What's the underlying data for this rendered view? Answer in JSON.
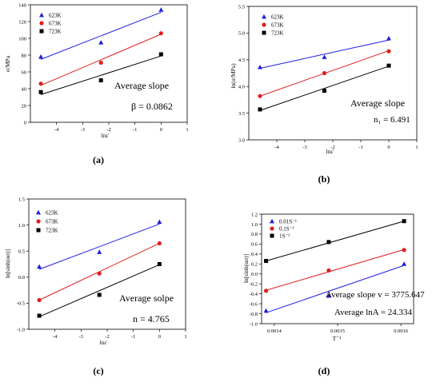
{
  "chart_data": [
    {
      "panel": "(a)",
      "type": "scatter",
      "xlabel": "lnε̇",
      "ylabel": "σ/MPa",
      "xlim": [
        -5,
        1
      ],
      "ylim": [
        0,
        140
      ],
      "xticks": [
        -4,
        -3,
        -2,
        -1,
        0,
        1
      ],
      "yticks": [
        0,
        20,
        40,
        60,
        80,
        100,
        120,
        140
      ],
      "series": [
        {
          "name": "623K",
          "color": "#1f1fe0",
          "marker": "triangle",
          "x": [
            -4.6,
            -2.3,
            0
          ],
          "y": [
            78,
            95,
            134
          ],
          "fit": [
            [
              -4.6,
              75
            ],
            [
              0,
              131
            ]
          ]
        },
        {
          "name": "673K",
          "color": "#e01f1f",
          "marker": "circle",
          "x": [
            -4.6,
            -2.3,
            0
          ],
          "y": [
            46,
            71,
            106
          ],
          "fit": [
            [
              -4.6,
              44
            ],
            [
              0,
              105
            ]
          ]
        },
        {
          "name": "723K",
          "color": "#000000",
          "marker": "square",
          "x": [
            -4.6,
            -2.3,
            0
          ],
          "y": [
            36,
            50,
            81
          ],
          "fit": [
            [
              -4.6,
              33
            ],
            [
              0,
              79
            ]
          ]
        }
      ],
      "annotations": [
        "Average slope",
        "β = 0.0862"
      ]
    },
    {
      "panel": "(b)",
      "type": "scatter",
      "xlabel": "lnε̇",
      "ylabel": "ln(σ/MPa)",
      "xlim": [
        -5,
        1
      ],
      "ylim": [
        3.0,
        5.5
      ],
      "xticks": [
        -4,
        -3,
        -2,
        -1,
        0,
        1
      ],
      "yticks": [
        "3.0",
        "3.5",
        "4.0",
        "4.5",
        "5.0",
        "5.5"
      ],
      "series": [
        {
          "name": "623K",
          "color": "#1f1fe0",
          "marker": "triangle",
          "x": [
            -4.6,
            -2.3,
            0
          ],
          "y": [
            4.36,
            4.55,
            4.9
          ],
          "fit": [
            [
              -4.6,
              4.34
            ],
            [
              0,
              4.87
            ]
          ]
        },
        {
          "name": "673K",
          "color": "#e01f1f",
          "marker": "circle",
          "x": [
            -4.6,
            -2.3,
            0
          ],
          "y": [
            3.82,
            4.25,
            4.66
          ],
          "fit": [
            [
              -4.6,
              3.82
            ],
            [
              0,
              4.67
            ]
          ]
        },
        {
          "name": "723K",
          "color": "#000000",
          "marker": "square",
          "x": [
            -4.6,
            -2.3,
            0
          ],
          "y": [
            3.57,
            3.92,
            4.39
          ],
          "fit": [
            [
              -4.6,
              3.55
            ],
            [
              0,
              4.38
            ]
          ]
        }
      ],
      "annotations": [
        "Average slope",
        "n₁ = 6.491"
      ]
    },
    {
      "panel": "(c)",
      "type": "scatter",
      "xlabel": "lnε̇",
      "ylabel": "ln[sinh(ασ)]",
      "xlim": [
        -5,
        1
      ],
      "ylim": [
        -1.0,
        1.5
      ],
      "xticks": [
        -4,
        -3,
        -2,
        -1,
        0,
        1
      ],
      "yticks": [
        "-1.0",
        "-0.5",
        "0.0",
        "0.5",
        "1.0",
        "1.5"
      ],
      "series": [
        {
          "name": "623K",
          "color": "#1f1fe0",
          "marker": "triangle",
          "x": [
            -4.6,
            -2.3,
            0
          ],
          "y": [
            0.2,
            0.48,
            1.06
          ],
          "fit": [
            [
              -4.6,
              0.15
            ],
            [
              0,
              1.02
            ]
          ]
        },
        {
          "name": "673K",
          "color": "#e01f1f",
          "marker": "circle",
          "x": [
            -4.6,
            -2.3,
            0
          ],
          "y": [
            -0.44,
            0.07,
            0.65
          ],
          "fit": [
            [
              -4.6,
              -0.44
            ],
            [
              0,
              0.65
            ]
          ]
        },
        {
          "name": "723K",
          "color": "#000000",
          "marker": "square",
          "x": [
            -4.6,
            -2.3,
            0
          ],
          "y": [
            -0.74,
            -0.34,
            0.25
          ],
          "fit": [
            [
              -4.6,
              -0.76
            ],
            [
              0,
              0.24
            ]
          ]
        }
      ],
      "annotations": [
        "Average solpe",
        "n = 4.765"
      ]
    },
    {
      "panel": "(d)",
      "type": "scatter",
      "xlabel": "T⁻¹",
      "ylabel": "ln[sinh(ασ)]",
      "xlim": [
        0.00138,
        0.00162
      ],
      "ylim": [
        -1.0,
        1.2
      ],
      "xticks": [
        "0.0014",
        "0.0015",
        "0.0016"
      ],
      "xtick_values": [
        0.0014,
        0.0015,
        0.0016
      ],
      "yticks": [
        "-1.0",
        "-0.8",
        "-0.6",
        "-0.4",
        "-0.2",
        "0.0",
        "0.2",
        "0.4",
        "0.6",
        "0.8",
        "1.0",
        "1.2"
      ],
      "series": [
        {
          "name": "0.01S⁻¹",
          "color": "#1f1fe0",
          "marker": "triangle",
          "x": [
            0.001387,
            0.001486,
            0.001605
          ],
          "y": [
            -0.74,
            -0.44,
            0.2
          ],
          "fit": [
            [
              0.001387,
              -0.78
            ],
            [
              0.001605,
              0.17
            ]
          ]
        },
        {
          "name": "0.1S⁻¹",
          "color": "#e01f1f",
          "marker": "circle",
          "x": [
            0.001387,
            0.001486,
            0.001605
          ],
          "y": [
            -0.34,
            0.07,
            0.48
          ],
          "fit": [
            [
              0.001387,
              -0.33
            ],
            [
              0.001605,
              0.49
            ]
          ]
        },
        {
          "name": "1S⁻¹",
          "color": "#000000",
          "marker": "square",
          "x": [
            0.001387,
            0.001486,
            0.001605
          ],
          "y": [
            0.26,
            0.64,
            1.06
          ],
          "fit": [
            [
              0.001387,
              0.26
            ],
            [
              0.001605,
              1.06
            ]
          ]
        }
      ],
      "annotations": [
        "Average slope v = 3775.647",
        "Average lnA = 24.334"
      ]
    }
  ]
}
